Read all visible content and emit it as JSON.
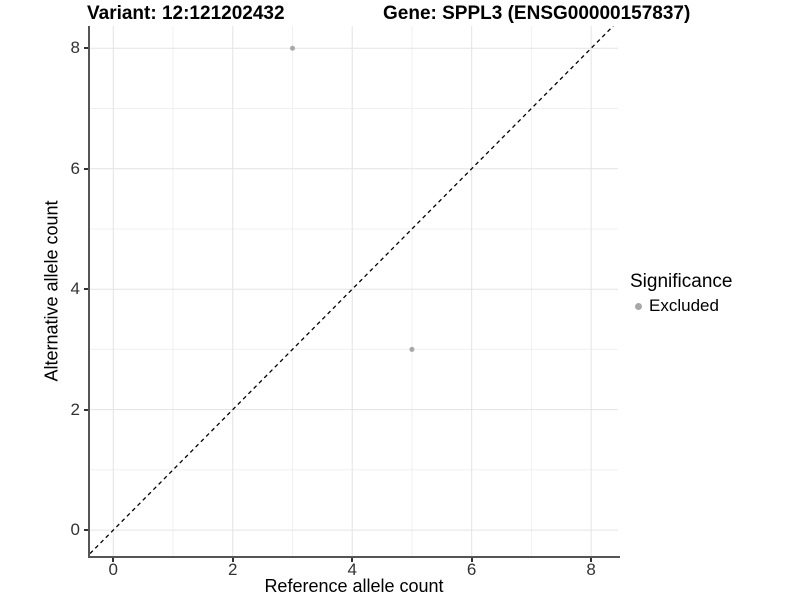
{
  "chart_data": {
    "type": "scatter",
    "titles": {
      "left": "Variant: 12:121202432",
      "right": "Gene: SPPL3 (ENSG00000157837)"
    },
    "xlabel": "Reference allele count",
    "ylabel": "Alternative allele count",
    "x_ticks": [
      0,
      2,
      4,
      6,
      8
    ],
    "y_ticks": [
      0,
      2,
      4,
      6,
      8
    ],
    "xlim": [
      -0.39,
      8.45
    ],
    "ylim": [
      -0.43,
      8.37
    ],
    "grid": {
      "major": true,
      "minor": true
    },
    "identity_line": {
      "equation": "y = x",
      "style": "dashed",
      "color": "#000000"
    },
    "series": [
      {
        "name": "Excluded",
        "color": "#a8a8a8",
        "point_radius": 2.5,
        "points": [
          {
            "x": 3,
            "y": 8
          },
          {
            "x": 5,
            "y": 3
          }
        ]
      }
    ],
    "legend": {
      "title": "Significance",
      "position": "right",
      "entries": [
        {
          "label": "Excluded",
          "color": "#a8a8a8"
        }
      ]
    },
    "colors": {
      "background": "#ffffff",
      "grid_major": "#e3e3e3",
      "grid_minor": "#f0f0f0",
      "axis_line": "#555555",
      "tick_mark": "#333333",
      "tick_label": "#333333",
      "title": "#000000"
    }
  }
}
